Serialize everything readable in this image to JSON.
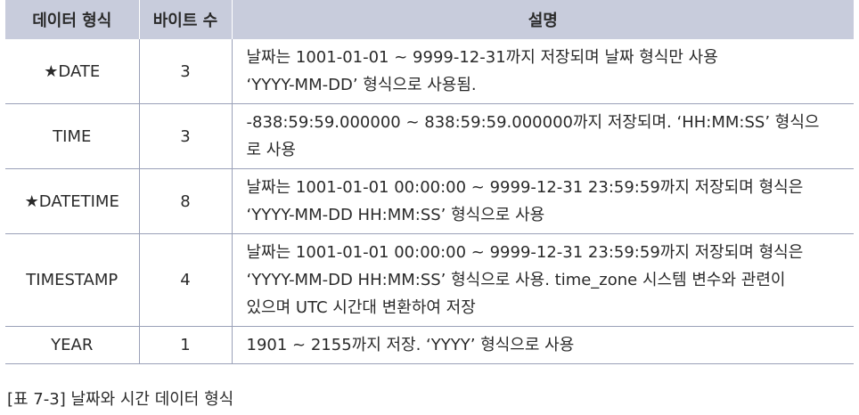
{
  "table": {
    "headers": [
      "데이터 형식",
      "바이트 수",
      "설명"
    ],
    "rows": [
      {
        "name": "★DATE",
        "bytes": "3",
        "desc_lines": [
          "날짜는 1001-01-01 ~ 9999-12-31까지 저장되며 날짜 형식만 사용",
          "‘YYYY-MM-DD’ 형식으로 사용됨."
        ]
      },
      {
        "name": "TIME",
        "bytes": "3",
        "desc_lines": [
          "-838:59:59.000000 ~ 838:59:59.000000까지 저장되며. ‘HH:MM:SS’ 형식으",
          "로 사용"
        ]
      },
      {
        "name": "★DATETIME",
        "bytes": "8",
        "desc_lines": [
          "날짜는 1001-01-01 00:00:00 ~ 9999-12-31 23:59:59까지 저장되며 형식은",
          "‘YYYY-MM-DD HH:MM:SS’ 형식으로 사용"
        ]
      },
      {
        "name": "TIMESTAMP",
        "bytes": "4",
        "desc_lines": [
          "날짜는 1001-01-01 00:00:00 ~ 9999-12-31 23:59:59까지 저장되며 형식은",
          "‘YYYY-MM-DD HH:MM:SS’ 형식으로 사용. time_zone 시스템 변수와 관련이",
          "있으며 UTC 시간대 변환하여 저장"
        ]
      },
      {
        "name": "YEAR",
        "bytes": "1",
        "desc_lines": [
          "1901 ~ 2155까지 저장. ‘YYYY’ 형식으로 사용"
        ]
      }
    ]
  },
  "caption": "[표 7-3] 날짜와 시간 데이터 형식",
  "colors": {
    "header_bg": "#c8ccdc",
    "border": "#9aa1b8",
    "text": "#2a2a2a"
  }
}
